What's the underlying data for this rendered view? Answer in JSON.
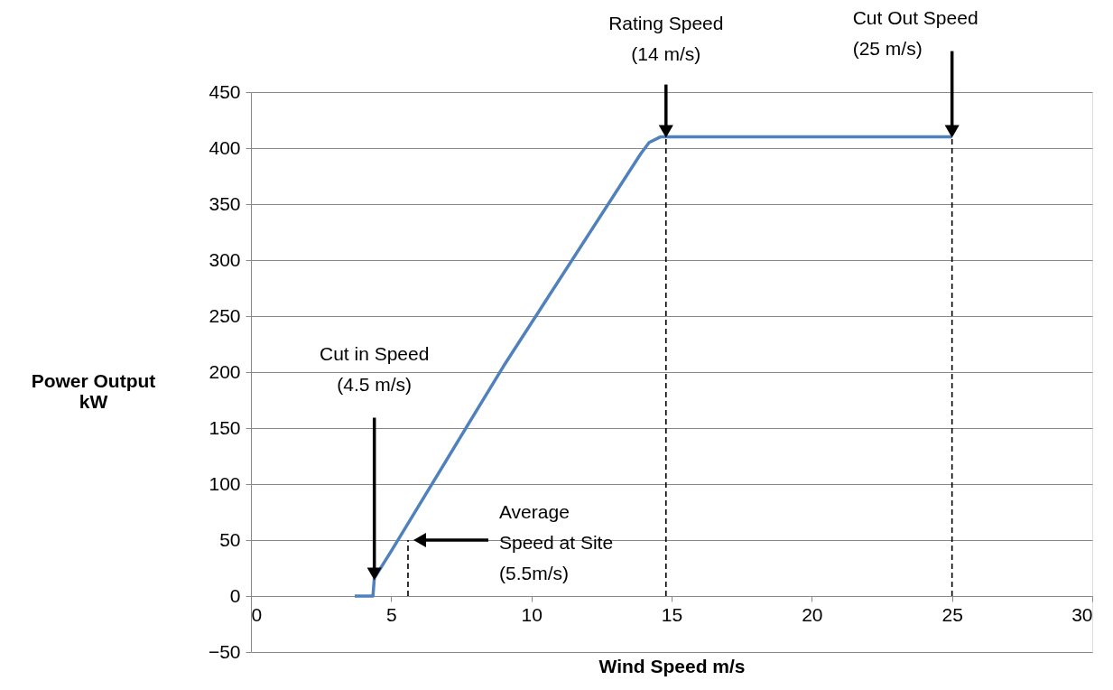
{
  "chart_data": {
    "type": "line",
    "xlabel": "Wind Speed m/s",
    "ylabel": "Power Output\nkW",
    "xlim": [
      0,
      30
    ],
    "xticks": [
      0,
      5,
      10,
      15,
      20,
      25,
      30
    ],
    "ylim": [
      -50,
      450
    ],
    "yticks": [
      -50,
      0,
      50,
      100,
      150,
      200,
      250,
      300,
      350,
      400,
      450
    ],
    "grid": "y",
    "series": [
      {
        "color": "#4f81bd",
        "line_style": "solid",
        "x": [
          3.7,
          4.35,
          4.4,
          5,
          9,
          13.9,
          14.2,
          14.6,
          25
        ],
        "values": [
          0,
          0,
          16,
          40,
          205,
          395,
          405,
          410,
          410
        ]
      },
      {
        "color": "#000000",
        "line_style": "dashed",
        "x": [
          5.6,
          5.6
        ],
        "values": [
          0,
          50
        ]
      },
      {
        "color": "#000000",
        "line_style": "dashed",
        "x": [
          14.8,
          14.8
        ],
        "values": [
          0,
          410
        ]
      },
      {
        "color": "#000000",
        "line_style": "dashed",
        "x": [
          25,
          25
        ],
        "values": [
          0,
          410
        ]
      }
    ],
    "annotations": [
      {
        "text": "Cut in Speed\n(4.5 m/s)",
        "x": 4.4,
        "y": 15
      },
      "Average\nSpeed at Site\n(5.5m/s)",
      {
        "text": "Rating Speed\n(14 m/s)",
        "x": 14.8,
        "y": 410
      },
      {
        "text": "Cut Out Speed\n(25 m/s)",
        "x": 25,
        "y": 410
      }
    ]
  }
}
